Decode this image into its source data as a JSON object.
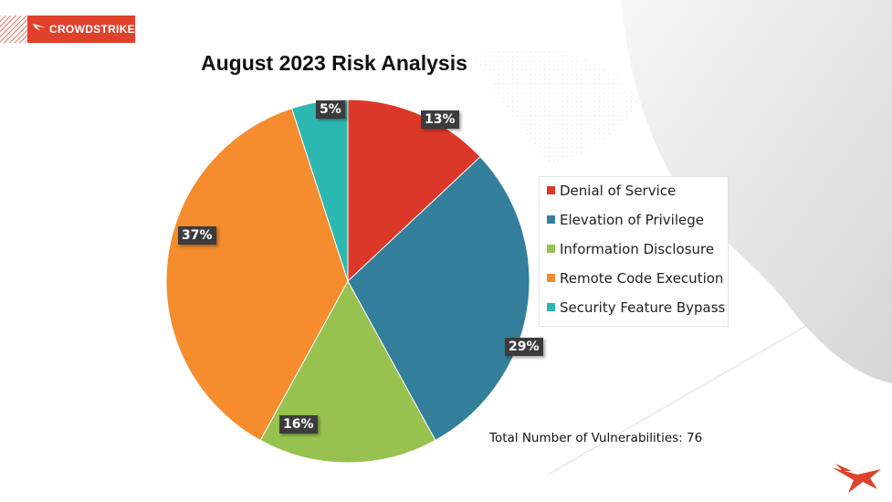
{
  "brand": {
    "logo_text": "CROWDSTRIKE",
    "logo_color": "#e0412b"
  },
  "chart_data": {
    "type": "pie",
    "title": "August 2023 Risk Analysis",
    "categories": [
      "Denial of Service",
      "Elevation of Privilege",
      "Information Disclosure",
      "Remote Code Execution",
      "Security Feature Bypass"
    ],
    "values": [
      13,
      29,
      16,
      37,
      5
    ],
    "value_labels": [
      "13%",
      "29%",
      "16%",
      "37%",
      "5%"
    ],
    "colors": [
      "#dc3829",
      "#347f9b",
      "#98c24f",
      "#f58c2d",
      "#2cb8b0"
    ],
    "legend_position": "right",
    "annotation": "Total Number of Vulnerabilities: 76"
  }
}
